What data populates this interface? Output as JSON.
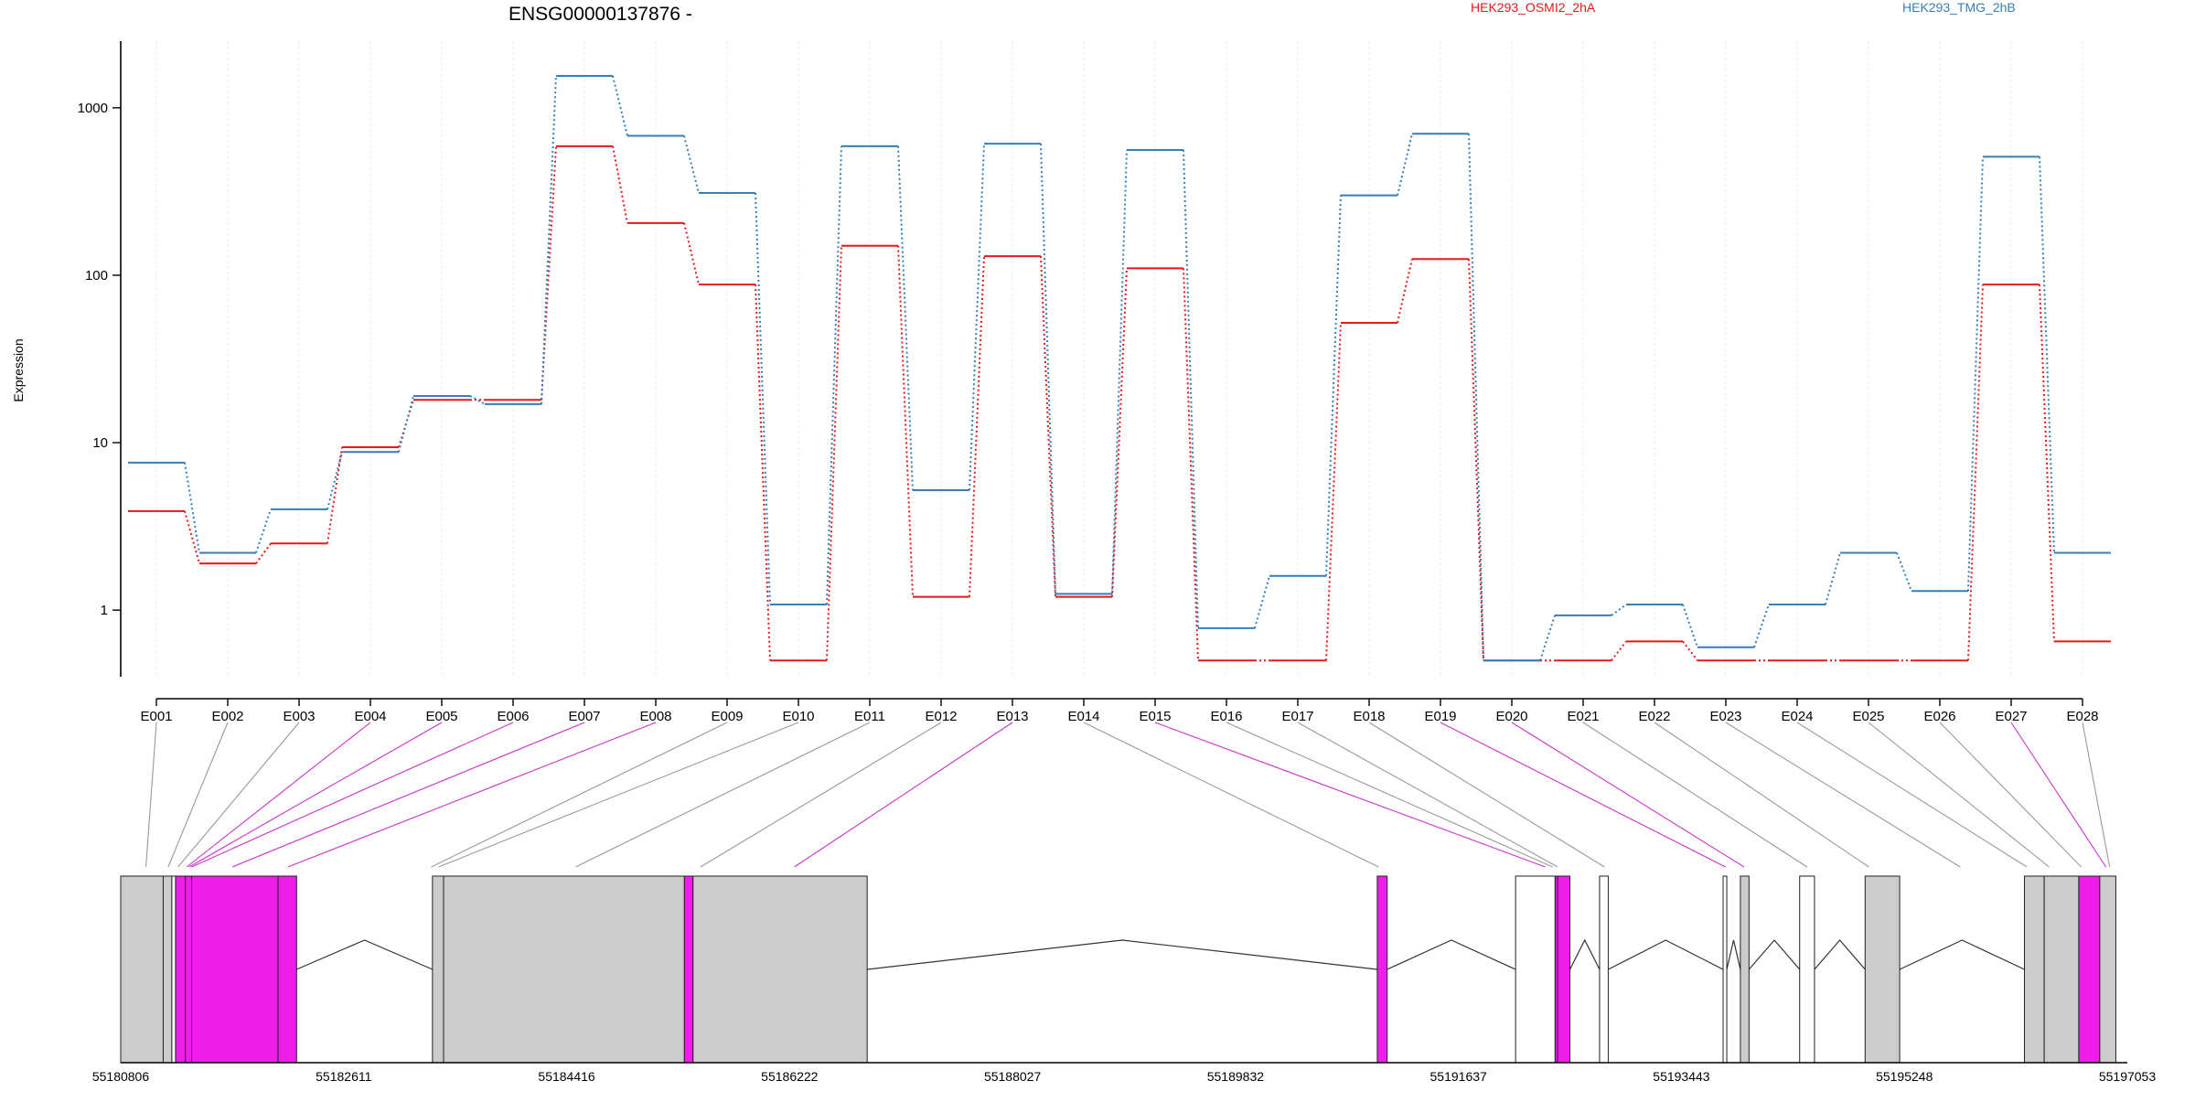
{
  "chart_data": {
    "type": "line",
    "title": "ENSG00000137876 -",
    "ylabel": "Expression",
    "yscale": "log",
    "ylim": [
      0.4,
      2500
    ],
    "y_ticks": [
      1,
      10,
      100,
      1000
    ],
    "y_tick_labels": [
      "1",
      "10",
      "100",
      "1000"
    ],
    "categories": [
      "E001",
      "E002",
      "E003",
      "E004",
      "E005",
      "E006",
      "E007",
      "E008",
      "E009",
      "E010",
      "E011",
      "E012",
      "E013",
      "E014",
      "E015",
      "E016",
      "E017",
      "E018",
      "E019",
      "E020",
      "E021",
      "E022",
      "E023",
      "E024",
      "E025",
      "E026",
      "E027",
      "E028"
    ],
    "series": [
      {
        "name": "HEK293_OSMI2_2hA",
        "color": "#e41a1c",
        "values": [
          3.9,
          1.9,
          2.5,
          9.4,
          18,
          18,
          590,
          205,
          88,
          0.5,
          150,
          1.2,
          130,
          1.2,
          110,
          0.5,
          0.5,
          52,
          125,
          0.5,
          0.5,
          0.65,
          0.5,
          0.5,
          0.5,
          0.5,
          88,
          0.65
        ]
      },
      {
        "name": "HEK293_TMG_2hB",
        "color": "#377eb8",
        "values": [
          7.6,
          2.2,
          4.0,
          8.8,
          19,
          17,
          1550,
          680,
          310,
          1.08,
          590,
          5.2,
          610,
          1.25,
          560,
          0.78,
          1.6,
          300,
          700,
          0.5,
          0.93,
          1.08,
          0.6,
          1.08,
          2.2,
          1.3,
          510,
          2.2
        ]
      }
    ],
    "highlighted_exons": [
      "E004",
      "E005",
      "E006",
      "E007",
      "E008",
      "E013",
      "E015",
      "E019",
      "E020",
      "E027"
    ],
    "gene_model": {
      "coord_start": 55180806,
      "coord_end": 55197053,
      "tick_labels": [
        "55180806",
        "55182611",
        "55184416",
        "55186222",
        "55188027",
        "55189832",
        "55191637",
        "55193443",
        "55195248",
        "55197053"
      ],
      "box_color": "#cccccc",
      "highlight_color": "#ee1ee8",
      "blocks": [
        {
          "start": 55180806,
          "end": 55181150,
          "fill": "grey"
        },
        {
          "start": 55181150,
          "end": 55181220,
          "fill": "grey"
        },
        {
          "start": 55181220,
          "end": 55181250,
          "fill": "white"
        },
        {
          "start": 55181250,
          "end": 55181330,
          "fill": "magenta"
        },
        {
          "start": 55181330,
          "end": 55181380,
          "fill": "magenta"
        },
        {
          "start": 55181380,
          "end": 55182080,
          "fill": "magenta"
        },
        {
          "start": 55182080,
          "end": 55182230,
          "fill": "magenta"
        },
        {
          "start": 55183330,
          "end": 55183420,
          "fill": "grey"
        },
        {
          "start": 55183420,
          "end": 55185370,
          "fill": "grey"
        },
        {
          "start": 55185370,
          "end": 55185440,
          "fill": "magenta"
        },
        {
          "start": 55185440,
          "end": 55186850,
          "fill": "grey"
        },
        {
          "start": 55190980,
          "end": 55191060,
          "fill": "magenta"
        },
        {
          "start": 55192100,
          "end": 55192420,
          "fill": "white"
        },
        {
          "start": 55192420,
          "end": 55192440,
          "fill": "magenta"
        },
        {
          "start": 55192440,
          "end": 55192540,
          "fill": "magenta"
        },
        {
          "start": 55192780,
          "end": 55192850,
          "fill": "white"
        },
        {
          "start": 55193780,
          "end": 55193810,
          "fill": "white"
        },
        {
          "start": 55193920,
          "end": 55193990,
          "fill": "grey"
        },
        {
          "start": 55194400,
          "end": 55194520,
          "fill": "white"
        },
        {
          "start": 55194930,
          "end": 55195210,
          "fill": "grey"
        },
        {
          "start": 55196220,
          "end": 55196380,
          "fill": "grey"
        },
        {
          "start": 55196380,
          "end": 55196660,
          "fill": "grey"
        },
        {
          "start": 55196660,
          "end": 55196830,
          "fill": "magenta"
        },
        {
          "start": 55196830,
          "end": 55196960,
          "fill": "grey"
        }
      ],
      "introns": [
        [
          55182230,
          55183330
        ],
        [
          55186850,
          55190980
        ],
        [
          55191060,
          55192100
        ],
        [
          55192540,
          55192780
        ],
        [
          55192850,
          55193780
        ],
        [
          55193810,
          55193920
        ],
        [
          55193990,
          55194400
        ],
        [
          55194520,
          55194930
        ],
        [
          55195210,
          55196220
        ]
      ],
      "exon_positions": [
        55181010,
        55181190,
        55181270,
        55181340,
        55181360,
        55181380,
        55181710,
        55182160,
        55183320,
        55183380,
        55184490,
        55185500,
        55186260,
        55190990,
        55192340,
        55192400,
        55192440,
        55192820,
        55193800,
        55193950,
        55194460,
        55194960,
        55195700,
        55196240,
        55196420,
        55196680,
        55196880,
        55196910
      ]
    }
  }
}
